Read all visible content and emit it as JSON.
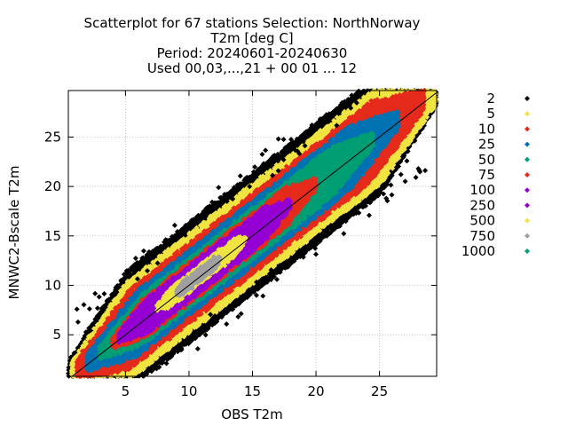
{
  "chart_data": {
    "type": "scatter",
    "title_lines": [
      "Scatterplot for   67 stations Selection: NorthNorway",
      "T2m [deg C]",
      "Period: 20240601-20240630",
      "Used 00,03,...,21 + 00 01 ... 12"
    ],
    "xlabel": "OBS T2m",
    "ylabel": "MNWC2-Bscale T2m",
    "xlim": [
      0.5,
      29.5
    ],
    "ylim": [
      0.8,
      29.7
    ],
    "xticks": [
      5,
      10,
      15,
      20,
      25
    ],
    "yticks": [
      5,
      10,
      15,
      20,
      25
    ],
    "grid": true,
    "legend_position": "right",
    "diagonal_line": true,
    "density_legend": [
      {
        "label": "2",
        "color": "#000000"
      },
      {
        "label": "5",
        "color": "#f0e442"
      },
      {
        "label": "10",
        "color": "#e52b1c"
      },
      {
        "label": "25",
        "color": "#0072b2"
      },
      {
        "label": "50",
        "color": "#009e73"
      },
      {
        "label": "75",
        "color": "#e52b1c"
      },
      {
        "label": "100",
        "color": "#9400d3"
      },
      {
        "label": "250",
        "color": "#9400d3"
      },
      {
        "label": "500",
        "color": "#f0e442"
      },
      {
        "label": "750",
        "color": "#a0a0a0"
      },
      {
        "label": "1000",
        "color": "#009e73"
      }
    ],
    "density_bands": [
      {
        "level": "2",
        "color": "#000000",
        "halfwidth": 6.0,
        "x_range": [
          0.5,
          29.5
        ]
      },
      {
        "level": "5",
        "color": "#f0e442",
        "halfwidth": 5.0,
        "x_range": [
          0.8,
          29.5
        ]
      },
      {
        "level": "10",
        "color": "#e52b1c",
        "halfwidth": 4.0,
        "x_range": [
          1.2,
          28.5
        ]
      },
      {
        "level": "25",
        "color": "#0072b2",
        "halfwidth": 3.2,
        "x_range": [
          2.0,
          26.5
        ]
      },
      {
        "level": "50",
        "color": "#009e73",
        "halfwidth": 2.5,
        "x_range": [
          3.0,
          24.5
        ]
      },
      {
        "level": "75",
        "color": "#e52b1c",
        "halfwidth": 2.0,
        "x_range": [
          4.0,
          20.0
        ]
      },
      {
        "level": "100",
        "color": "#9400d3",
        "halfwidth": 1.7,
        "x_range": [
          4.5,
          18.0
        ]
      },
      {
        "level": "500",
        "color": "#f0e442",
        "halfwidth": 0.9,
        "x_range": [
          7.5,
          14.5
        ]
      },
      {
        "level": "750",
        "color": "#a0a0a0",
        "halfwidth": 0.6,
        "x_range": [
          9.0,
          12.5
        ]
      }
    ]
  }
}
